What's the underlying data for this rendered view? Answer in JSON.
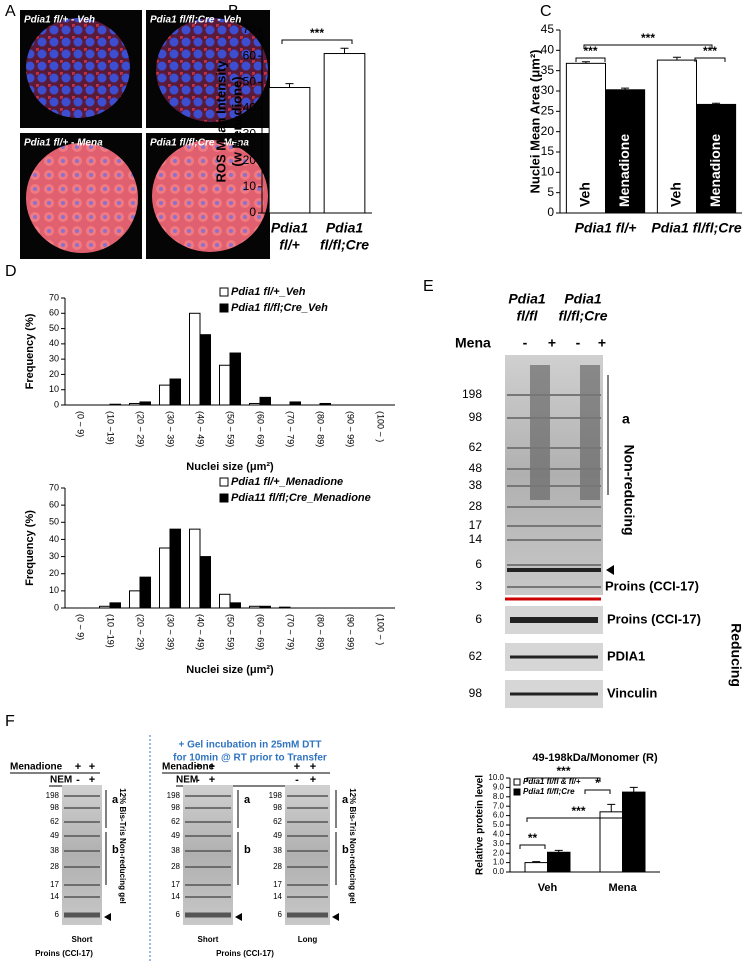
{
  "figure": {
    "panel_labels": [
      "A",
      "B",
      "C",
      "D",
      "E",
      "F"
    ]
  },
  "panel_a": {
    "captions": [
      "Pdia1 fl/+ - Veh",
      "Pdia1 fl/fl;Cre - Veh",
      "Pdia1 fl/+ - Mena",
      "Pdia1 fl/fl;Cre - Mena"
    ]
  },
  "chart_data": [
    {
      "type": "bar",
      "ylabel": [
        "ROS Mean Intensity",
        "(w Menadione)"
      ],
      "categories": [
        [
          "Pdia1",
          "fl/+"
        ],
        [
          "Pdia1",
          "fl/fl;Cre"
        ]
      ],
      "series": [
        {
          "color": "#ffffff",
          "values": [
            48,
            61
          ],
          "errors": [
            1.5,
            2
          ]
        }
      ],
      "ylim": [
        0,
        70
      ],
      "yticks": [
        0,
        10,
        20,
        30,
        40,
        50,
        60,
        70
      ],
      "grid": false,
      "annotations": [
        "***"
      ]
    },
    {
      "type": "bar",
      "ylabel": "Nuclei Mean Area (μm²)",
      "categories": [
        "Pdia1 fl/+",
        "Pdia1 fl/fl;Cre"
      ],
      "series": [
        {
          "name": "Veh",
          "color": "#ffffff",
          "values": [
            36.8,
            37.6
          ],
          "errors": [
            0.4,
            0.7
          ]
        },
        {
          "name": "Menadione",
          "color": "#000000",
          "values": [
            30.3,
            26.7
          ],
          "errors": [
            0.4,
            0.3
          ]
        }
      ],
      "ylim": [
        0,
        45
      ],
      "yticks": [
        0,
        5,
        10,
        15,
        20,
        25,
        30,
        35,
        40,
        45
      ],
      "grid": false,
      "legend": "in-bars",
      "annotations": [
        "***",
        "***",
        "***"
      ]
    },
    {
      "type": "bar",
      "ylabel": "Frequency (%)",
      "xlabel": "Nuclei size (μm²)",
      "categories": [
        "(0 ~ 9)",
        "(10 ~19)",
        "(20 ~ 29)",
        "(30 ~ 39)",
        "(40 ~ 49)",
        "(50 ~ 59)",
        "(60 ~ 69)",
        "(70 ~ 79)",
        "(80 ~ 89)",
        "(90 ~ 99)",
        "(100 ~ )"
      ],
      "series": [
        {
          "name": "Pdia1 fl/+_Veh",
          "color": "#ffffff",
          "values": [
            0,
            0,
            1,
            13,
            60,
            26,
            1,
            0,
            0,
            0,
            0
          ]
        },
        {
          "name": "Pdia1 fl/fl;Cre_Veh",
          "color": "#000000",
          "values": [
            0,
            0.5,
            2,
            17,
            46,
            34,
            5,
            2,
            1,
            0,
            0
          ]
        }
      ],
      "ylim": [
        0,
        70
      ],
      "yticks": [
        0,
        10,
        20,
        30,
        40,
        50,
        60,
        70
      ],
      "grid": false,
      "legend": "upper right"
    },
    {
      "type": "bar",
      "ylabel": "Frequency (%)",
      "xlabel": "Nuclei size (μm²)",
      "categories": [
        "(0 ~ 9)",
        "(10 ~19)",
        "(20 ~ 29)",
        "(30 ~ 39)",
        "(40 ~ 49)",
        "(50 ~ 59)",
        "(60 ~ 69)",
        "(70 ~ 79)",
        "(80 ~ 89)",
        "(90 ~ 99)",
        "(100 ~ )"
      ],
      "series": [
        {
          "name": "Pdia1 fl/+_Menadione",
          "color": "#ffffff",
          "values": [
            0,
            1,
            10,
            35,
            46,
            8,
            1,
            0.5,
            0,
            0,
            0
          ]
        },
        {
          "name": "Pdia11 fl/fl;Cre_Menadione",
          "color": "#000000",
          "values": [
            0,
            3,
            18,
            46,
            30,
            3,
            1,
            0,
            0,
            0,
            0
          ]
        }
      ],
      "ylim": [
        0,
        70
      ],
      "yticks": [
        0,
        10,
        20,
        30,
        40,
        50,
        60,
        70
      ],
      "grid": false,
      "legend": "upper right"
    },
    {
      "type": "bar",
      "title": "49-198kDa/Monomer (R)",
      "ylabel": "Relative protein level",
      "categories": [
        "Veh",
        "Mena"
      ],
      "series": [
        {
          "name": "Pdia1 fl/fl & fl/+",
          "color": "#ffffff",
          "values": [
            1.0,
            6.4
          ],
          "errors": [
            0.1,
            0.8
          ]
        },
        {
          "name": "Pdia1 fl/fl;Cre",
          "color": "#000000",
          "values": [
            2.1,
            8.5
          ],
          "errors": [
            0.2,
            0.5
          ]
        }
      ],
      "ylim": [
        0,
        10
      ],
      "yticks": [
        {
          "value": 0,
          "label": "0.0"
        },
        {
          "value": 1,
          "label": "1.0"
        },
        {
          "value": 2,
          "label": "2.0"
        },
        {
          "value": 3,
          "label": "3.0"
        },
        {
          "value": 4,
          "label": "4.0"
        },
        {
          "value": 5,
          "label": "5.0"
        },
        {
          "value": 6,
          "label": "6.0"
        },
        {
          "value": 7,
          "label": "7.0"
        },
        {
          "value": 8,
          "label": "8.0"
        },
        {
          "value": 9,
          "label": "9.0"
        },
        {
          "value": 10,
          "label": "10.0"
        }
      ],
      "grid": false,
      "legend": "upper left",
      "annotations": [
        "***",
        "*",
        "***",
        "**"
      ]
    }
  ],
  "panel_e": {
    "lanes": [
      [
        "Pdia1",
        "fl/fl"
      ],
      [
        "Pdia1",
        "fl/fl;Cre"
      ]
    ],
    "treatment": "Mena",
    "signs": [
      "-",
      "+",
      "-",
      "+"
    ],
    "markers": [
      198,
      98,
      62,
      48,
      38,
      28,
      17,
      14,
      6,
      3
    ],
    "band": "a",
    "non_reducing": "Non-reducing",
    "proins": "Proins (CCI-17)",
    "reducing_blots": [
      {
        "marker": 6,
        "label": "Proins (CCI-17)"
      },
      {
        "marker": 62,
        "label": "PDIA1"
      },
      {
        "marker": 98,
        "label": "Vinculin"
      }
    ],
    "reducing": "Reducing"
  },
  "panel_f": {
    "left": {
      "rows": [
        {
          "label": "Menadione",
          "signs": [
            "+",
            "+"
          ]
        },
        {
          "label": "NEM",
          "signs": [
            "-",
            "+"
          ]
        }
      ],
      "markers": [
        198,
        98,
        62,
        49,
        38,
        28,
        17,
        14,
        6
      ],
      "bands": [
        "a",
        "b"
      ],
      "exposure": "Short",
      "gel_note": "12% Bis-Tris Non-reducing gel",
      "caption": "Proins (CCI-17)"
    },
    "right": {
      "note": [
        "+ Gel incubation in 25mM DTT",
        "for 10min @ RT prior to Transfer"
      ],
      "rows": [
        {
          "label": "Menadione",
          "signs": [
            "+",
            "+",
            "+",
            "+"
          ]
        },
        {
          "label": "NEM",
          "signs": [
            "-",
            "+",
            "-",
            "+"
          ]
        }
      ],
      "blots": [
        {
          "markers": [
            198,
            98,
            62,
            49,
            38,
            28,
            17,
            14,
            6
          ],
          "bands": [
            "a",
            "b"
          ],
          "exposure": "Short"
        },
        {
          "markers": [
            198,
            98,
            62,
            49,
            38,
            28,
            17,
            14,
            6
          ],
          "bands": [
            "a",
            "b"
          ],
          "exposure": "Long"
        }
      ],
      "gel_note": "12% Bis-Tris Non-reducing gel",
      "caption": "Proins (CCI-17)"
    }
  }
}
